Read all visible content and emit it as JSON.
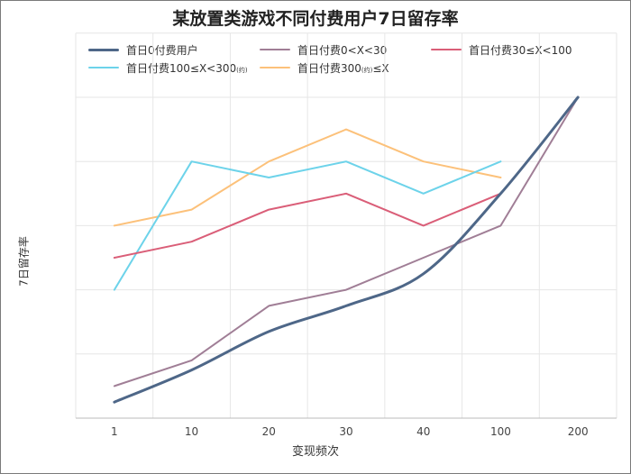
{
  "chart_data": {
    "type": "line",
    "title": "某放置类游戏不同付费用户7日留存率",
    "xlabel": "变现频次",
    "ylabel": "7日留存率",
    "categories": [
      "1",
      "10",
      "20",
      "30",
      "40",
      "100",
      "200"
    ],
    "grid": true,
    "legend_position": "top",
    "ylim": [
      0,
      10
    ],
    "y_ticks_labeled": false,
    "series": [
      {
        "name": "首日0付费用户",
        "color": "#4e6788",
        "width": 3,
        "values": [
          0.5,
          1.5,
          2.7,
          3.5,
          4.5,
          7,
          10
        ]
      },
      {
        "name": "首日付费0<X<30",
        "color": "#a07e96",
        "width": 2,
        "values": [
          1,
          1.8,
          3.5,
          4,
          5,
          6,
          10
        ]
      },
      {
        "name": "首日付费30≤X<100",
        "color": "#da5e78",
        "width": 2,
        "values": [
          5,
          5.5,
          6.5,
          7,
          6,
          7,
          null
        ]
      },
      {
        "name": "首日付费100≤X<300",
        "name_suffix": "(约)",
        "color": "#6dd3ea",
        "width": 2,
        "values": [
          4,
          8,
          7.5,
          8,
          7,
          8,
          null
        ]
      },
      {
        "name": "首日付费300",
        "name_suffix": "(约)",
        "name_tail": "≤X",
        "color": "#fcc17a",
        "width": 2,
        "values": [
          6,
          6.5,
          8,
          9,
          8,
          7.5,
          null
        ]
      }
    ]
  }
}
